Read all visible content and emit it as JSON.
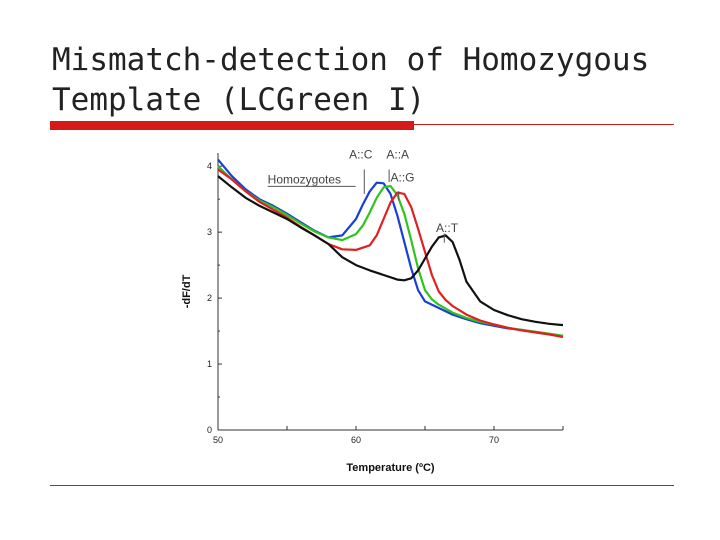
{
  "slide": {
    "title_line1": "Mismatch-detection of Homozygous",
    "title_line2": "Template (LCGreen I)"
  },
  "chart_data": {
    "type": "line",
    "title": "",
    "xlabel": "Temperature (ºC)",
    "ylabel": "-dF/dT",
    "xlim": [
      50,
      75
    ],
    "ylim": [
      0,
      4.2
    ],
    "x_ticks": [
      50,
      60,
      70
    ],
    "y_ticks": [
      0,
      1,
      2,
      3,
      4
    ],
    "grid": false,
    "legend": "none",
    "annotations": [
      {
        "text": "Homozygotes",
        "x": 53.6,
        "y": 3.74
      },
      {
        "text": "A::C",
        "x": 59.5,
        "y": 4.12
      },
      {
        "text": "A::A",
        "x": 62.2,
        "y": 4.12
      },
      {
        "text": "A::G",
        "x": 62.5,
        "y": 3.77
      },
      {
        "text": "A::T",
        "x": 65.8,
        "y": 3.0
      }
    ],
    "series": [
      {
        "name": "A::C",
        "color": "#1a3fd6",
        "x": [
          50,
          51,
          52,
          53,
          54,
          55,
          56,
          57,
          58,
          59,
          60,
          60.5,
          61,
          61.5,
          62,
          62.5,
          63,
          63.5,
          64,
          64.5,
          65,
          66,
          67,
          68,
          69,
          70,
          71,
          72,
          73,
          74,
          75
        ],
        "y": [
          4.1,
          3.85,
          3.65,
          3.5,
          3.4,
          3.28,
          3.15,
          3.02,
          2.92,
          2.95,
          3.2,
          3.42,
          3.62,
          3.75,
          3.74,
          3.58,
          3.25,
          2.85,
          2.45,
          2.12,
          1.95,
          1.85,
          1.75,
          1.68,
          1.62,
          1.58,
          1.54,
          1.52,
          1.48,
          1.45,
          1.42
        ]
      },
      {
        "name": "A::A",
        "color": "#2ec41d",
        "x": [
          50,
          51,
          52,
          53,
          54,
          55,
          56,
          57,
          58,
          59,
          60,
          60.5,
          61,
          61.5,
          62,
          62.5,
          63,
          63.5,
          64,
          64.5,
          65,
          65.5,
          66,
          67,
          68,
          69,
          70,
          71,
          72,
          73,
          74,
          75
        ],
        "y": [
          4.0,
          3.8,
          3.62,
          3.48,
          3.38,
          3.26,
          3.13,
          3.01,
          2.92,
          2.88,
          2.97,
          3.1,
          3.3,
          3.52,
          3.68,
          3.7,
          3.56,
          3.28,
          2.88,
          2.45,
          2.12,
          1.98,
          1.9,
          1.78,
          1.7,
          1.64,
          1.6,
          1.55,
          1.52,
          1.49,
          1.46,
          1.43
        ]
      },
      {
        "name": "A::G",
        "color": "#e02020",
        "x": [
          50,
          51,
          52,
          53,
          54,
          55,
          56,
          57,
          58,
          59,
          60,
          61,
          61.5,
          62,
          62.5,
          63,
          63.5,
          64,
          64.5,
          65,
          65.5,
          66,
          66.5,
          67,
          68,
          69,
          70,
          71,
          72,
          73,
          74,
          75
        ],
        "y": [
          3.95,
          3.8,
          3.62,
          3.46,
          3.34,
          3.22,
          3.08,
          2.95,
          2.82,
          2.74,
          2.73,
          2.8,
          2.95,
          3.2,
          3.45,
          3.6,
          3.58,
          3.38,
          3.05,
          2.7,
          2.35,
          2.1,
          1.97,
          1.88,
          1.75,
          1.66,
          1.6,
          1.55,
          1.51,
          1.48,
          1.45,
          1.41
        ]
      },
      {
        "name": "A::T",
        "color": "#111111",
        "x": [
          50,
          51,
          52,
          53,
          54,
          55,
          56,
          57,
          58,
          59,
          60,
          61,
          62,
          63,
          63.5,
          64,
          64.5,
          65,
          65.5,
          66,
          66.5,
          67,
          67.5,
          68,
          69,
          70,
          71,
          72,
          73,
          74,
          75
        ],
        "y": [
          3.85,
          3.68,
          3.52,
          3.4,
          3.3,
          3.2,
          3.07,
          2.95,
          2.82,
          2.62,
          2.5,
          2.42,
          2.35,
          2.28,
          2.27,
          2.3,
          2.42,
          2.6,
          2.78,
          2.92,
          2.95,
          2.85,
          2.58,
          2.25,
          1.95,
          1.82,
          1.74,
          1.68,
          1.64,
          1.61,
          1.59
        ]
      }
    ]
  }
}
